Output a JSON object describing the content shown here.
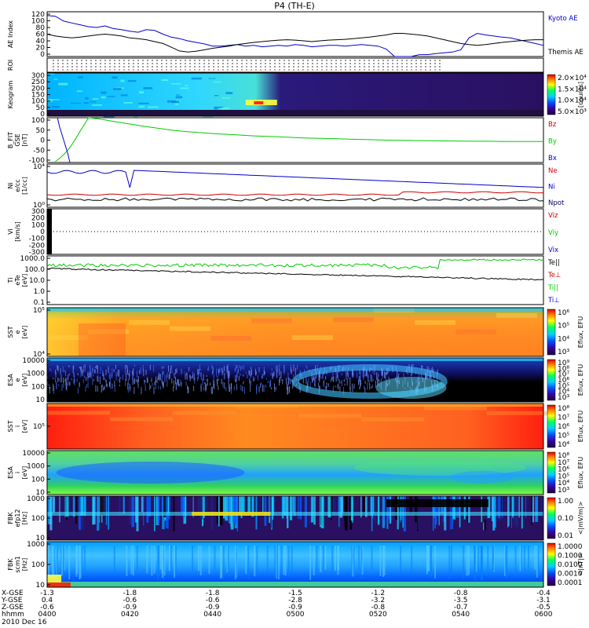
{
  "chart_data": {
    "type": "timeseries-stack",
    "title": "P4 (TH-E)",
    "time_range": [
      "04:00",
      "06:00"
    ],
    "date_label": "2010 Dec 16",
    "footer": {
      "row_labels": [
        "X-GSE",
        "Y-GSE",
        "Z-GSE",
        "hhmm"
      ],
      "time_ticks": [
        "0400",
        "0420",
        "0440",
        "0500",
        "0520",
        "0540",
        "0600"
      ],
      "x_gse": [
        "-1.3",
        "-1.8",
        "-1.8",
        "-1.5",
        "-1.2",
        "-0.8",
        "-0.4"
      ],
      "y_gse": [
        "0.4",
        "-0.6",
        "-0.6",
        "-2.8",
        "-3.2",
        "-3.5",
        "-3.1"
      ],
      "z_gse": [
        "-0.6",
        "-0.9",
        "-0.9",
        "-0.9",
        "-0.8",
        "-0.7",
        "-0.5"
      ]
    },
    "panels": [
      {
        "id": "ae",
        "ylabel": [
          "AE Index"
        ],
        "yticks": [
          "120",
          "100",
          "80",
          "60",
          "40",
          "20",
          "0"
        ],
        "yrange": [
          0,
          120
        ],
        "series": [
          {
            "name": "Kyoto AE",
            "color": "#0000cc",
            "t": [
              0,
              2,
              4,
              6,
              8,
              10,
              12,
              14,
              16,
              18,
              20,
              22,
              24,
              26,
              28,
              30,
              32,
              34,
              36,
              38,
              40,
              42,
              44,
              46,
              48,
              50,
              52,
              54,
              56,
              58,
              60,
              62,
              64,
              66,
              68,
              70,
              72,
              74,
              76,
              78,
              80,
              82,
              84,
              86,
              88,
              90,
              92,
              94,
              96,
              98,
              100,
              102,
              104,
              106,
              108,
              110,
              112,
              114,
              116,
              118,
              120
            ],
            "v": [
              110,
              108,
              95,
              90,
              85,
              80,
              78,
              82,
              75,
              72,
              68,
              65,
              72,
              70,
              60,
              52,
              48,
              42,
              38,
              34,
              28,
              28,
              30,
              32,
              28,
              30,
              26,
              28,
              30,
              28,
              32,
              30,
              26,
              28,
              30,
              30,
              28,
              30,
              32,
              30,
              28,
              20,
              0,
              0,
              0,
              5,
              5,
              8,
              10,
              12,
              18,
              50,
              62,
              58,
              55,
              52,
              50,
              45,
              40,
              35,
              30
            ]
          },
          {
            "name": "Themis AE",
            "color": "#000000",
            "t": [
              0,
              2,
              4,
              6,
              8,
              10,
              12,
              14,
              16,
              18,
              20,
              22,
              24,
              26,
              28,
              30,
              32,
              34,
              36,
              38,
              40,
              42,
              44,
              46,
              48,
              50,
              52,
              54,
              56,
              58,
              60,
              62,
              64,
              66,
              68,
              70,
              72,
              74,
              76,
              78,
              80,
              82,
              84,
              86,
              88,
              90,
              92,
              94,
              96,
              98,
              100,
              102,
              104,
              106,
              108,
              110,
              112,
              114,
              116,
              118,
              120
            ],
            "v": [
              60,
              55,
              52,
              50,
              52,
              55,
              58,
              60,
              58,
              55,
              50,
              48,
              45,
              40,
              35,
              25,
              15,
              12,
              14,
              18,
              22,
              25,
              28,
              32,
              35,
              38,
              40,
              42,
              44,
              45,
              44,
              42,
              40,
              42,
              44,
              45,
              46,
              48,
              50,
              52,
              55,
              58,
              62,
              62,
              60,
              58,
              55,
              50,
              45,
              40,
              35,
              32,
              30,
              32,
              35,
              38,
              40,
              42,
              44,
              45,
              45
            ]
          }
        ]
      },
      {
        "id": "roi",
        "ylabel": [
          "ROI"
        ],
        "yticks": []
      },
      {
        "id": "keogram",
        "ylabel": [
          "Keogram"
        ],
        "yticks": [
          "300",
          "250",
          "200",
          "150",
          "100",
          "50",
          "0"
        ],
        "colorbar": {
          "label": "[counts]",
          "ticks": [
            "2.0×10⁴",
            "1.5×10⁴",
            "1.0×10⁴",
            "5.0×10³"
          ]
        }
      },
      {
        "id": "bfit",
        "ylabel": [
          "B_FIT",
          "GSE",
          "[nT]"
        ],
        "yticks": [
          "100",
          "50",
          "0",
          "-50",
          "-100"
        ],
        "yrange": [
          -100,
          100
        ],
        "series": [
          {
            "name": "Bz",
            "color": "#cc0000",
            "t": [],
            "v": []
          },
          {
            "name": "By",
            "color": "#00cc00",
            "t": [
              2,
              3,
              4,
              5,
              6,
              7,
              8,
              9,
              10,
              12,
              14,
              16,
              18,
              20,
              22,
              24,
              26,
              28,
              30,
              34,
              38,
              42,
              46,
              50,
              54,
              58,
              62,
              66,
              70,
              74,
              78,
              82,
              86,
              90,
              94,
              98,
              102,
              106,
              110,
              114,
              118,
              120
            ],
            "v": [
              -95,
              -82,
              -65,
              -45,
              -20,
              10,
              40,
              70,
              100,
              96,
              90,
              84,
              78,
              72,
              66,
              60,
              55,
              50,
              45,
              38,
              32,
              27,
              23,
              19,
              16,
              13,
              10,
              8,
              6,
              4,
              2,
              0,
              -1,
              -2,
              -3,
              -4,
              -5,
              -5,
              -6,
              -6,
              -6,
              -6
            ]
          },
          {
            "name": "Bx",
            "color": "#0000cc",
            "t": [
              2.5,
              3,
              4,
              5,
              5.5
            ],
            "v": [
              100,
              60,
              0,
              -60,
              -100
            ]
          }
        ]
      },
      {
        "id": "ni",
        "ylabel": [
          "Ni",
          "e/cc",
          "[1/cc]"
        ],
        "yticks": [
          "10⁴",
          "10⁰"
        ],
        "series": [
          {
            "name": "Ne",
            "color": "#cc0000"
          },
          {
            "name": "Ni",
            "color": "#0000cc"
          },
          {
            "name": "Npot",
            "color": "#000066"
          }
        ]
      },
      {
        "id": "vi",
        "ylabel": [
          "Vi",
          "[km/s]"
        ],
        "yticks": [
          "300",
          "200",
          "100",
          "0",
          "-100",
          "-200",
          "-300"
        ],
        "yrange": [
          -300,
          300
        ],
        "series": [
          {
            "name": "Viz",
            "color": "#cc0000"
          },
          {
            "name": "Viy",
            "color": "#00cc00"
          },
          {
            "name": "Vix",
            "color": "#0000cc"
          }
        ]
      },
      {
        "id": "ti",
        "ylabel": [
          "Ti",
          "eTe",
          "[eV]"
        ],
        "yticks": [
          "1000.0",
          "100.0",
          "10.0",
          "1.0",
          "0.1"
        ],
        "series": [
          {
            "name": "Te||",
            "color": "#000000"
          },
          {
            "name": "Te⊥",
            "color": "#cc0000"
          },
          {
            "name": "Ti||",
            "color": "#00cc00"
          },
          {
            "name": "Ti⊥",
            "color": "#0000cc"
          }
        ]
      },
      {
        "id": "sst_e",
        "ylabel": [
          "SST",
          "e",
          "[eV]"
        ],
        "yticks": [
          "10⁵",
          "10⁴"
        ],
        "colorbar": {
          "label": "Eflux, EFU",
          "ticks": [
            "10⁶",
            "10⁵",
            "10⁴",
            "10³"
          ]
        }
      },
      {
        "id": "esa_e",
        "ylabel": [
          "ESA",
          "e",
          "[eV]"
        ],
        "yticks": [
          "10000",
          "1000",
          "100",
          "10"
        ],
        "colorbar": {
          "label": "Eflux, EFU",
          "ticks": [
            "10⁹",
            "10⁸",
            "10⁷",
            "10⁶",
            "10⁵",
            "10⁴",
            "10³"
          ]
        }
      },
      {
        "id": "sst_i",
        "ylabel": [
          "SST",
          "i",
          "[eV]"
        ],
        "yticks": [
          "10⁵"
        ],
        "colorbar": {
          "label": "Eflux, EFU",
          "ticks": [
            "10⁸",
            "10⁷",
            "10⁶",
            "10⁵",
            "10⁴"
          ]
        }
      },
      {
        "id": "esa_i",
        "ylabel": [
          "ESA",
          "i",
          "[eV]"
        ],
        "yticks": [
          "10000",
          "1000",
          "100",
          "10"
        ],
        "colorbar": {
          "label": "Eflux, EFU",
          "ticks": [
            "10⁸",
            "10⁷",
            "10⁶",
            "10⁵",
            "10⁴",
            "10³"
          ]
        }
      },
      {
        "id": "fbk_e",
        "ylabel": [
          "FBK",
          "efp12",
          "[Hz]"
        ],
        "yticks": [
          "1000",
          "100",
          "10"
        ],
        "colorbar": {
          "label": "<|mV/m|>",
          "ticks": [
            "1.00",
            "0.10",
            "0.01"
          ]
        }
      },
      {
        "id": "fbk_b",
        "ylabel": [
          "FBK",
          "scm1",
          "[Hz]"
        ],
        "yticks": [
          "1000",
          "100",
          "10"
        ],
        "colorbar": {
          "label": "<|nT|>",
          "ticks": [
            "1.0000",
            "0.1000",
            "0.0100",
            "0.0010",
            "0.0001"
          ]
        }
      }
    ]
  }
}
